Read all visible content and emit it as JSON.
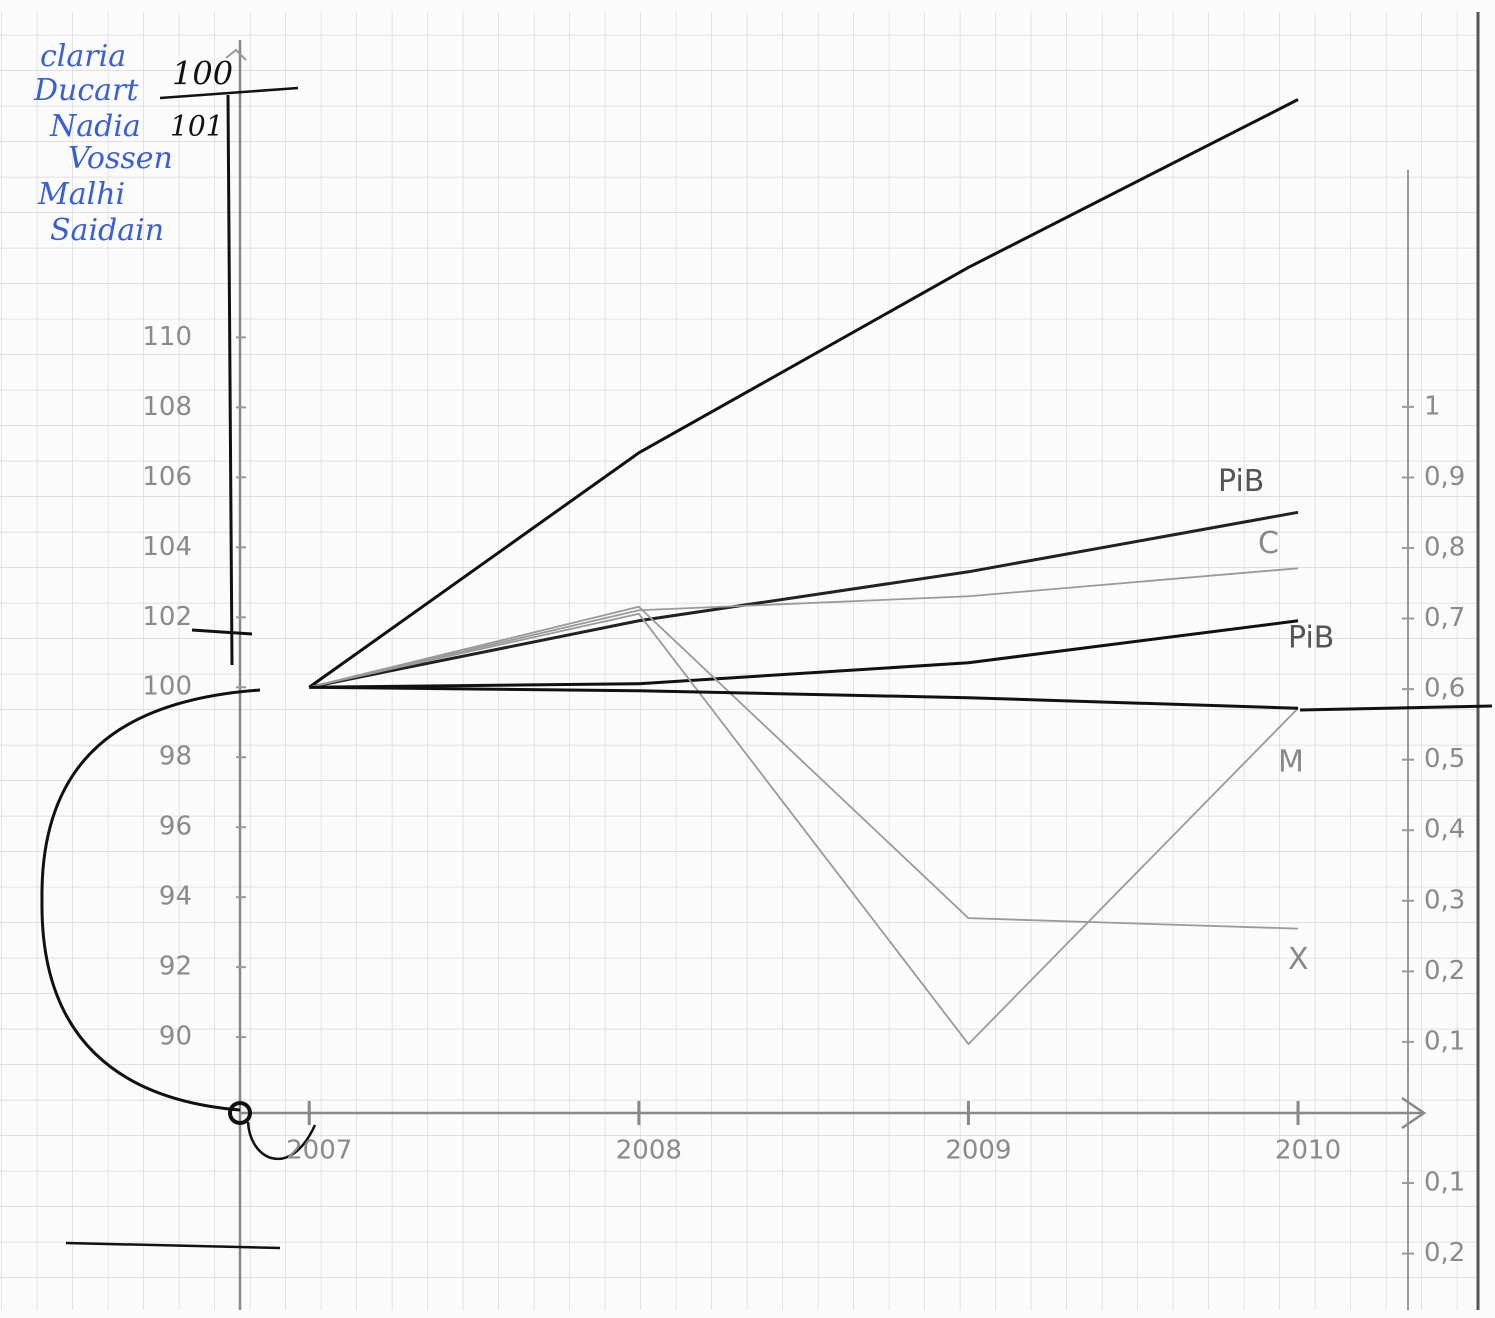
{
  "chart_data": {
    "type": "line",
    "authors": [
      "claria",
      "Ducart",
      "Nadia",
      "Vossen",
      "Malhi",
      "Saidain"
    ],
    "annotations": [
      "100",
      "101"
    ],
    "x": [
      2007,
      2008,
      2009,
      2010
    ],
    "xlim": [
      2006.79,
      2010.37
    ],
    "xticks": [
      2007,
      2008,
      2009,
      2010
    ],
    "ylim": [
      82.2,
      118.5
    ],
    "yticks": [
      90,
      92,
      94,
      96,
      98,
      100,
      102,
      104,
      106,
      108,
      110
    ],
    "y2lim": [
      -0.28,
      1.52
    ],
    "y2ticks": [
      {
        "value": -0.2,
        "label": "0,2"
      },
      {
        "value": -0.1,
        "label": "0,1"
      },
      {
        "value": 0.1,
        "label": "0,1"
      },
      {
        "value": 0.2,
        "label": "0,2"
      },
      {
        "value": 0.3,
        "label": "0,3"
      },
      {
        "value": 0.4,
        "label": "0,4"
      },
      {
        "value": 0.5,
        "label": "0,5"
      },
      {
        "value": 0.6,
        "label": "0,6"
      },
      {
        "value": 0.7,
        "label": "0,7"
      },
      {
        "value": 0.8,
        "label": "0,8"
      },
      {
        "value": 0.9,
        "label": "0,9"
      },
      1
    ],
    "series": [
      {
        "color": "#111111",
        "values": [
          100,
          106.7,
          112,
          116.8
        ]
      },
      {
        "name": "PiB",
        "color": "#222222",
        "values": [
          100,
          101.9,
          103.3,
          105
        ]
      },
      {
        "name": "C",
        "color": "#9a9a9a",
        "values": [
          100,
          102.2,
          102.6,
          103.4
        ]
      },
      {
        "name": "PiB",
        "color": "#111111",
        "values": [
          100,
          100.1,
          100.7,
          101.9
        ]
      },
      {
        "name": "M",
        "color": "#9a9a9a",
        "values": [
          100,
          102.1,
          89.8,
          99.4
        ]
      },
      {
        "name": "X",
        "color": "#9a9a9a",
        "values": [
          100,
          102.3,
          93.4,
          93.1
        ]
      },
      {
        "color": "#111111",
        "values": [
          100,
          99.9,
          99.7,
          99.4
        ]
      }
    ]
  }
}
